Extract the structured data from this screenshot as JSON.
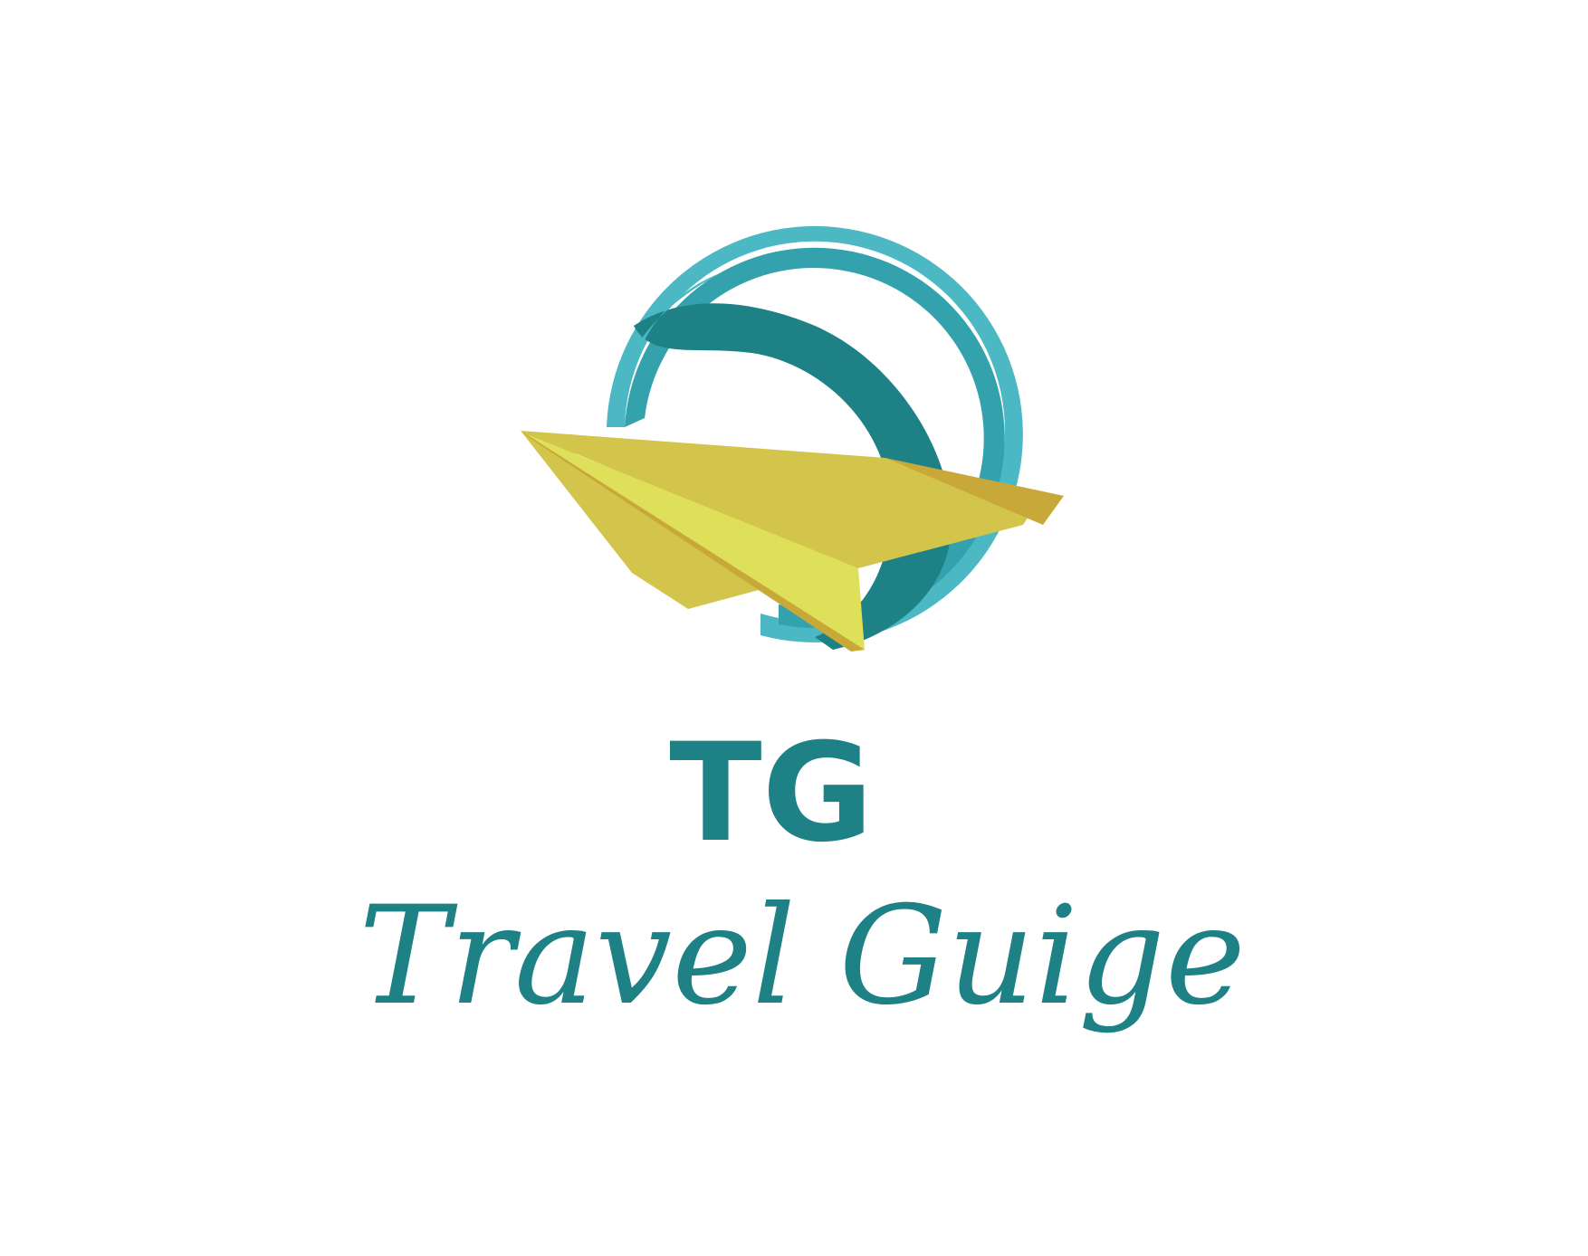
{
  "brand": {
    "monogram": "TG",
    "wordmark": "Travel Guige",
    "text_color": "#1e8186"
  },
  "colors": {
    "swoosh_outer": "#4bb8c4",
    "swoosh_middle": "#33a2ad",
    "swoosh_inner": "#1e8186",
    "plane_main": "#d3c54c",
    "plane_light": "#dfe05a",
    "plane_shadow": "#c9a83a"
  }
}
